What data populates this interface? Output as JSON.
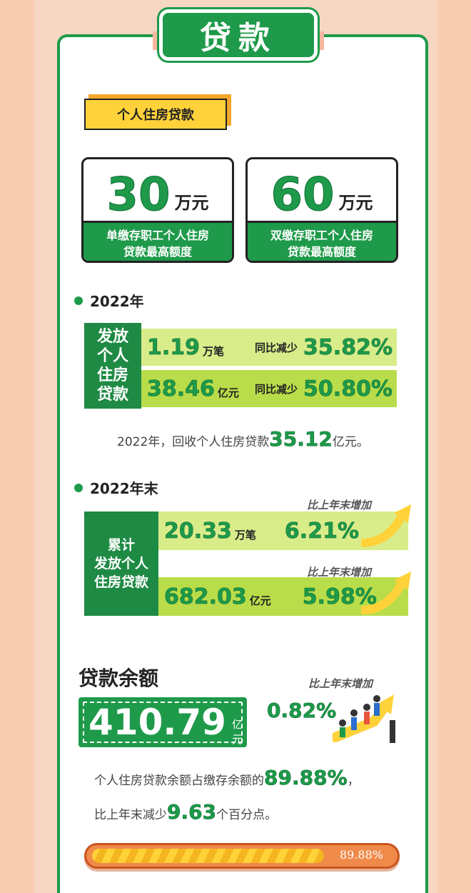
{
  "banner": {
    "title": "贷款"
  },
  "housing_tag": "个人住房贷款",
  "quotas": [
    {
      "value": "30",
      "unit": "万元",
      "desc_line1": "单缴存职工个人住房",
      "desc_line2": "贷款最高额度"
    },
    {
      "value": "60",
      "unit": "万元",
      "desc_line1": "双缴存职工个人住房",
      "desc_line2": "贷款最高额度"
    }
  ],
  "year2022": {
    "heading": "2022年",
    "block_label": [
      "发放",
      "个人",
      "住房",
      "贷款"
    ],
    "rows": [
      {
        "value": "1.19",
        "unit": "万笔",
        "yoy_label": "同比减少",
        "pct": "35.82%"
      },
      {
        "value": "38.46",
        "unit": "亿元",
        "yoy_label": "同比减少",
        "pct": "50.80%"
      }
    ],
    "recovery": {
      "prefix": "2022年，回收个人住房贷款",
      "value": "35.12",
      "unit": "亿元。"
    }
  },
  "year_end": {
    "heading": "2022年末",
    "block_label": [
      "累计",
      "发放个人",
      "住房贷款"
    ],
    "rows": [
      {
        "label": "比上年末增加",
        "value": "20.33",
        "unit": "万笔",
        "pct": "6.21%"
      },
      {
        "label": "比上年末增加",
        "value": "682.03",
        "unit": "亿元",
        "pct": "5.98%"
      }
    ]
  },
  "balance": {
    "title": "贷款余额",
    "value": "410.79",
    "unit": "亿元",
    "increase_label": "比上年末增加",
    "increase_pct": "0.82%",
    "ratio_prefix": "个人住房贷款余额占缴存余额的",
    "ratio_value": "89.88%",
    "ratio_suffix": "，",
    "decrease_prefix": "比上年末减少",
    "decrease_value": "9.63",
    "decrease_suffix": "个百分点。",
    "progress_fraction": 0.8988,
    "progress_label": "89.88%"
  },
  "colors": {
    "green": "#1e9a4a",
    "dark_green": "#1e8a44",
    "yellow": "#ffd23a",
    "orange": "#f08a4b"
  }
}
